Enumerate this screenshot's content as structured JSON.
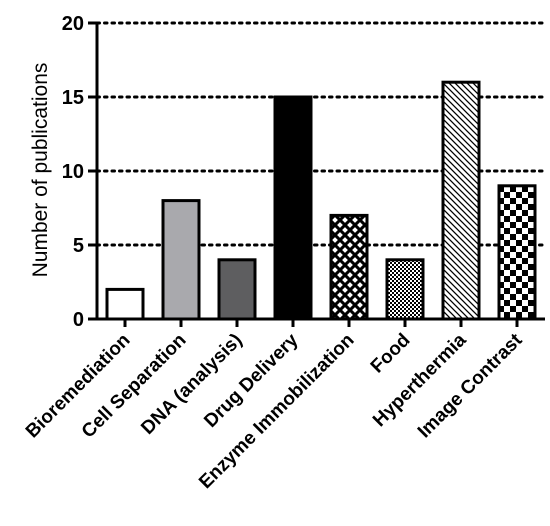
{
  "chart_data": {
    "type": "bar",
    "categories": [
      "Bioremediation",
      "Cell Separation",
      "DNA (analysis)",
      "Drug Delivery",
      "Enzyme Immobilization",
      "Food",
      "Hyperthermia",
      "Image Contrast"
    ],
    "values": [
      2,
      8,
      4,
      15,
      7,
      4,
      16,
      9
    ],
    "fills": [
      "white",
      "lightgray",
      "darkgray",
      "black",
      "crosshatch",
      "finecheck",
      "diagonal",
      "checker"
    ],
    "ylabel": "Number of publications",
    "ylim": [
      0,
      20
    ],
    "yticks": [
      "0",
      "5",
      "10",
      "15",
      "20"
    ],
    "grid": "dotted-horizontal",
    "colors": {
      "lightgray": "#a9a9ad",
      "darkgray": "#5e5e60",
      "black": "#000000",
      "white": "#ffffff"
    }
  }
}
